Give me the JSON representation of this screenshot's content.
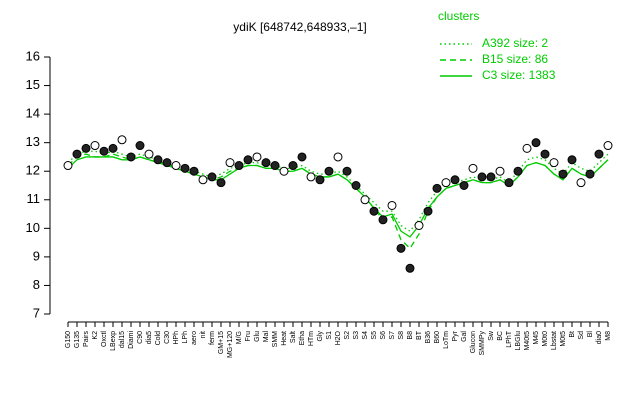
{
  "chart_data": {
    "type": "line",
    "title": "ydiK [648742,648933,–1]",
    "legend_title": "clusters",
    "legend_position": "top-right",
    "categories": [
      "G150",
      "G135",
      "Pairs",
      "K2",
      "Oxctl",
      "LBexp",
      "dal15",
      "Diami",
      "C90",
      "dia5",
      "Cold",
      "C30",
      "HPh",
      "LPh",
      "aero",
      "nit",
      "ferm",
      "GM+15",
      "MG+120",
      "M/G",
      "Fru",
      "Glu",
      "Mal",
      "SMM",
      "Heat",
      "Salt",
      "Etha",
      "HTm",
      "Gly",
      "S1",
      "H2O",
      "S2",
      "S3",
      "S4",
      "S5",
      "S6",
      "S7",
      "S8",
      "B8",
      "BT",
      "B36",
      "B60",
      "LoTm",
      "Pyr",
      "Gal",
      "Glucon",
      "SMMPy",
      "Sw",
      "BC",
      "LPhT",
      "LBGlu",
      "M40t5",
      "M45",
      "M0t0",
      "Lbstat",
      "M0t5",
      "Bt",
      "Sd",
      "Bl",
      "dia0",
      "M8"
    ],
    "series": [
      {
        "name": "A392 size: 2",
        "color": "#00cc00",
        "dash": "dotted",
        "values": [
          12.3,
          12.6,
          12.7,
          12.7,
          12.6,
          12.7,
          12.6,
          12.5,
          12.6,
          12.5,
          12.4,
          12.4,
          12.2,
          12.1,
          12.0,
          11.9,
          11.8,
          11.9,
          12.1,
          12.2,
          12.3,
          12.3,
          12.2,
          12.2,
          12.1,
          12.1,
          12.2,
          12.0,
          11.9,
          11.9,
          12.0,
          11.8,
          11.5,
          11.2,
          10.9,
          10.6,
          10.6,
          10.1,
          9.9,
          10.3,
          10.9,
          11.3,
          11.5,
          11.6,
          11.7,
          11.8,
          11.7,
          11.7,
          11.8,
          11.6,
          12.0,
          12.4,
          12.5,
          12.4,
          12.1,
          11.9,
          12.3,
          12.1,
          12.0,
          12.3,
          12.6
        ]
      },
      {
        "name": "B15 size: 86",
        "color": "#00cc00",
        "dash": "dashed",
        "values": [
          12.2,
          12.5,
          12.6,
          12.5,
          12.5,
          12.6,
          12.5,
          12.4,
          12.5,
          12.4,
          12.3,
          12.3,
          12.1,
          12.0,
          11.9,
          11.8,
          11.7,
          11.8,
          12.0,
          12.1,
          12.2,
          12.2,
          12.1,
          12.1,
          12.0,
          12.0,
          12.1,
          11.9,
          11.8,
          11.8,
          11.9,
          11.7,
          11.4,
          11.1,
          10.7,
          10.3,
          10.4,
          9.6,
          9.3,
          9.8,
          10.6,
          11.1,
          11.4,
          11.5,
          11.6,
          11.7,
          11.6,
          11.6,
          11.7,
          11.5,
          11.8,
          12.2,
          12.3,
          12.2,
          11.9,
          11.7,
          12.1,
          11.9,
          11.8,
          12.1,
          12.4
        ]
      },
      {
        "name": "C3 size: 1383",
        "color": "#00cc00",
        "dash": "solid",
        "values": [
          12.1,
          12.4,
          12.5,
          12.5,
          12.5,
          12.5,
          12.4,
          12.4,
          12.5,
          12.4,
          12.3,
          12.2,
          12.1,
          12.0,
          11.9,
          11.8,
          11.7,
          11.7,
          11.9,
          12.1,
          12.2,
          12.2,
          12.1,
          12.1,
          12.0,
          12.0,
          12.1,
          11.9,
          11.8,
          11.8,
          11.9,
          11.7,
          11.4,
          11.1,
          10.7,
          10.4,
          10.5,
          9.9,
          9.7,
          10.1,
          10.7,
          11.1,
          11.4,
          11.5,
          11.6,
          11.7,
          11.6,
          11.6,
          11.7,
          11.5,
          11.8,
          12.2,
          12.3,
          12.2,
          11.9,
          11.7,
          12.1,
          11.9,
          11.8,
          12.1,
          12.4
        ]
      }
    ],
    "points": {
      "color": "#000000",
      "values": [
        12.2,
        12.6,
        12.8,
        12.9,
        12.7,
        12.8,
        13.1,
        12.5,
        12.9,
        12.6,
        12.4,
        12.3,
        12.2,
        12.1,
        12.0,
        11.7,
        11.8,
        11.6,
        12.3,
        12.2,
        12.4,
        12.5,
        12.3,
        12.2,
        12.0,
        12.2,
        12.5,
        11.8,
        11.7,
        12.0,
        12.5,
        12.0,
        11.5,
        11.0,
        10.6,
        10.3,
        10.8,
        9.3,
        8.6,
        10.1,
        10.6,
        11.4,
        11.6,
        11.7,
        11.5,
        12.1,
        11.8,
        11.8,
        12.0,
        11.6,
        12.0,
        12.8,
        13.0,
        12.6,
        12.3,
        11.9,
        12.4,
        11.6,
        11.9,
        12.6,
        12.9
      ]
    },
    "ylim": [
      7,
      16
    ],
    "yticks": [
      7,
      8,
      9,
      10,
      11,
      12,
      13,
      14,
      15,
      16
    ]
  }
}
